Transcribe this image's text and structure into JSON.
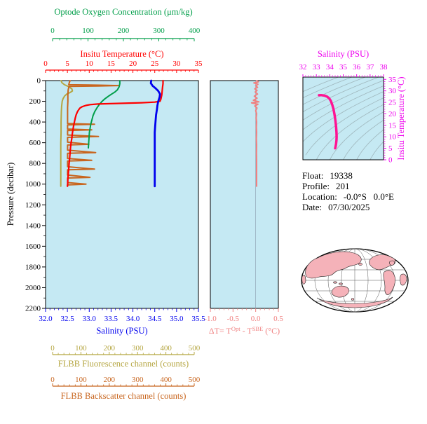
{
  "colors": {
    "plot_bg": "#C5E9F3",
    "frame": "#000000",
    "contour": "#9FB6BC",
    "map_land": "#F5B2B9",
    "map_line": "#333333",
    "text": "#000000"
  },
  "chart_data": [
    {
      "type": "line",
      "name": "profile-plot",
      "pressure_axis": {
        "title": "Pressure (decibar)",
        "color": "#000000",
        "range": [
          0,
          2200
        ],
        "ticks": [
          "0",
          "200",
          "400",
          "600",
          "800",
          "1000",
          "1200",
          "1400",
          "1600",
          "1800",
          "2000",
          "2200"
        ]
      },
      "salinity_axis": {
        "title": "Salinity (PSU)",
        "color": "#0000EE",
        "range": [
          32,
          35.5
        ],
        "ticks": [
          "32.0",
          "32.5",
          "33.0",
          "33.5",
          "34.0",
          "34.5",
          "35.0",
          "35.5"
        ]
      },
      "temperature_axis": {
        "title": "Insitu Temperature (°C)",
        "color": "#FF0000",
        "range": [
          0,
          35
        ],
        "ticks": [
          "0",
          "5",
          "10",
          "15",
          "20",
          "25",
          "30",
          "35"
        ]
      },
      "oxygen_axis": {
        "title": "Optode Oxygen Concentration (μm/kg)",
        "color": "#009E49",
        "range": [
          0,
          400
        ],
        "ticks": [
          "0",
          "100",
          "200",
          "300",
          "400"
        ]
      },
      "fluorescence_axis": {
        "title": "FLBB Fluorescence channel (counts)",
        "color": "#B5A642",
        "range": [
          0,
          500
        ],
        "ticks": [
          "0",
          "100",
          "200",
          "300",
          "400",
          "500"
        ]
      },
      "backscatter_axis": {
        "title": "FLBB Backscatter channel (counts)",
        "color": "#C8651E",
        "range": [
          0,
          500
        ],
        "ticks": [
          "0",
          "100",
          "200",
          "300",
          "400",
          "500"
        ]
      },
      "series": [
        {
          "name": "fluorescence",
          "axis": "fluorescence",
          "color": "#B5A642",
          "points": [
            [
              0,
              30
            ],
            [
              20,
              33
            ],
            [
              40,
              42
            ],
            [
              60,
              58
            ],
            [
              80,
              68
            ],
            [
              100,
              70
            ],
            [
              115,
              62
            ],
            [
              130,
              50
            ],
            [
              150,
              42
            ],
            [
              175,
              37
            ],
            [
              200,
              34
            ],
            [
              250,
              32
            ],
            [
              300,
              31
            ],
            [
              400,
              30
            ],
            [
              500,
              30
            ],
            [
              600,
              29
            ],
            [
              700,
              29
            ],
            [
              800,
              29
            ],
            [
              900,
              29
            ],
            [
              1000,
              29
            ],
            [
              1020,
              29
            ]
          ]
        },
        {
          "name": "backscatter",
          "axis": "backscatter",
          "color": "#C8651E",
          "points": [
            [
              0,
              62
            ],
            [
              20,
              59
            ],
            [
              40,
              57
            ],
            [
              44,
              165
            ],
            [
              48,
              232
            ],
            [
              52,
              160
            ],
            [
              56,
              58
            ],
            [
              90,
              55
            ],
            [
              140,
              54
            ],
            [
              200,
              54
            ],
            [
              260,
              53
            ],
            [
              320,
              53
            ],
            [
              380,
              53
            ],
            [
              415,
              53
            ],
            [
              422,
              148
            ],
            [
              428,
              53
            ],
            [
              468,
              53
            ],
            [
              476,
              138
            ],
            [
              482,
              53
            ],
            [
              525,
              53
            ],
            [
              540,
              162
            ],
            [
              548,
              53
            ],
            [
              595,
              53
            ],
            [
              615,
              128
            ],
            [
              622,
              53
            ],
            [
              672,
              53
            ],
            [
              695,
              152
            ],
            [
              702,
              53
            ],
            [
              752,
              53
            ],
            [
              770,
              138
            ],
            [
              777,
              53
            ],
            [
              832,
              53
            ],
            [
              855,
              148
            ],
            [
              862,
              53
            ],
            [
              912,
              53
            ],
            [
              935,
              132
            ],
            [
              941,
              53
            ],
            [
              985,
              53
            ],
            [
              1000,
              118
            ],
            [
              1008,
              53
            ],
            [
              1020,
              53
            ]
          ]
        },
        {
          "name": "oxygen",
          "axis": "oxygen",
          "color": "#009E49",
          "points": [
            [
              0,
              190
            ],
            [
              30,
              190
            ],
            [
              60,
              188
            ],
            [
              90,
              183
            ],
            [
              110,
              176
            ],
            [
              130,
              167
            ],
            [
              150,
              158
            ],
            [
              175,
              148
            ],
            [
              200,
              140
            ],
            [
              230,
              132
            ],
            [
              260,
              126
            ],
            [
              300,
              119
            ],
            [
              340,
              114
            ],
            [
              380,
              111
            ],
            [
              420,
              108
            ],
            [
              460,
              106
            ],
            [
              500,
              104
            ],
            [
              550,
              103
            ],
            [
              600,
              102
            ],
            [
              650,
              101
            ]
          ]
        },
        {
          "name": "temperature",
          "axis": "temperature",
          "color": "#FF0000",
          "points": [
            [
              0,
              26.9
            ],
            [
              30,
              26.9
            ],
            [
              60,
              26.8
            ],
            [
              100,
              26.7
            ],
            [
              140,
              26.6
            ],
            [
              180,
              26.4
            ],
            [
              200,
              26.2
            ],
            [
              208,
              25.0
            ],
            [
              214,
              22.0
            ],
            [
              220,
              17.0
            ],
            [
              226,
              12.0
            ],
            [
              232,
              10.2
            ],
            [
              240,
              9.2
            ],
            [
              252,
              8.4
            ],
            [
              265,
              7.9
            ],
            [
              280,
              7.6
            ],
            [
              300,
              7.3
            ],
            [
              330,
              7.0
            ],
            [
              360,
              6.8
            ],
            [
              400,
              6.6
            ],
            [
              440,
              6.4
            ],
            [
              480,
              6.25
            ],
            [
              520,
              6.1
            ],
            [
              560,
              6.0
            ],
            [
              600,
              5.85
            ],
            [
              650,
              5.7
            ],
            [
              700,
              5.6
            ],
            [
              750,
              5.5
            ],
            [
              800,
              5.4
            ],
            [
              850,
              5.3
            ],
            [
              900,
              5.2
            ],
            [
              950,
              5.1
            ],
            [
              1000,
              5.05
            ],
            [
              1020,
              5.0
            ]
          ]
        },
        {
          "name": "salinity",
          "axis": "salinity",
          "color": "#0000EE",
          "points": [
            [
              0,
              34.42
            ],
            [
              25,
              34.41
            ],
            [
              50,
              34.45
            ],
            [
              75,
              34.52
            ],
            [
              100,
              34.58
            ],
            [
              130,
              34.62
            ],
            [
              160,
              34.61
            ],
            [
              200,
              34.58
            ],
            [
              240,
              34.56
            ],
            [
              280,
              34.55
            ],
            [
              330,
              34.53
            ],
            [
              380,
              34.52
            ],
            [
              440,
              34.51
            ],
            [
              500,
              34.5
            ],
            [
              600,
              34.5
            ],
            [
              700,
              34.5
            ],
            [
              800,
              34.5
            ],
            [
              900,
              34.5
            ],
            [
              1000,
              34.5
            ],
            [
              1020,
              34.5
            ]
          ]
        }
      ]
    },
    {
      "type": "line",
      "name": "delta-t-plot",
      "x_axis": {
        "title_parts": {
          "pre": "ΔT= T",
          "sup1": "Opt",
          "mid": " - T",
          "sup2": "SBE",
          "post": " (°C)"
        },
        "color": "#F08080",
        "range": [
          -1.0,
          0.5
        ],
        "ticks": [
          "-1.0",
          "-0.5",
          "0.0",
          "0.5"
        ]
      },
      "series": [
        {
          "name": "delta-t",
          "color": "#F08080",
          "points": [
            [
              0,
              0.02
            ],
            [
              12,
              0.06
            ],
            [
              22,
              -0.04
            ],
            [
              35,
              0.05
            ],
            [
              50,
              0.0
            ],
            [
              65,
              0.04
            ],
            [
              80,
              -0.02
            ],
            [
              95,
              0.03
            ],
            [
              110,
              -0.01
            ],
            [
              130,
              0.04
            ],
            [
              150,
              -0.03
            ],
            [
              170,
              0.03
            ],
            [
              190,
              -0.05
            ],
            [
              205,
              0.07
            ],
            [
              215,
              -0.09
            ],
            [
              228,
              0.05
            ],
            [
              245,
              -0.02
            ],
            [
              265,
              0.03
            ],
            [
              290,
              0.0
            ],
            [
              320,
              0.02
            ],
            [
              360,
              0.01
            ],
            [
              400,
              0.02
            ],
            [
              450,
              0.015
            ],
            [
              500,
              0.02
            ],
            [
              560,
              0.015
            ],
            [
              620,
              0.02
            ],
            [
              700,
              0.018
            ],
            [
              780,
              0.02
            ],
            [
              860,
              0.02
            ],
            [
              940,
              0.02
            ],
            [
              1020,
              0.02
            ]
          ]
        }
      ]
    },
    {
      "type": "line",
      "name": "ts-diagram",
      "x_axis": {
        "title": "Salinity (PSU)",
        "color": "#EE00EE",
        "range": [
          32,
          38
        ],
        "ticks": [
          "32",
          "33",
          "34",
          "35",
          "36",
          "37",
          "38"
        ]
      },
      "y_axis": {
        "title": "Insitu Temperature (°C)",
        "color": "#EE00EE",
        "range": [
          0,
          36
        ],
        "ticks": [
          "0",
          "5",
          "10",
          "15",
          "20",
          "25",
          "30",
          "35"
        ]
      },
      "series": [
        {
          "name": "t-s-curve",
          "color": "#FF1493",
          "points": [
            [
              33.2,
              28.1
            ],
            [
              33.35,
              28.15
            ],
            [
              33.5,
              28.05
            ],
            [
              33.65,
              27.85
            ],
            [
              33.8,
              27.5
            ],
            [
              33.95,
              26.8
            ],
            [
              34.08,
              25.6
            ],
            [
              34.18,
              24.0
            ],
            [
              34.28,
              22.0
            ],
            [
              34.36,
              19.5
            ],
            [
              34.42,
              17.0
            ],
            [
              34.47,
              14.5
            ],
            [
              34.5,
              12.0
            ],
            [
              34.51,
              10.0
            ],
            [
              34.5,
              8.5
            ],
            [
              34.47,
              7.0
            ],
            [
              34.44,
              6.0
            ],
            [
              34.41,
              5.2
            ],
            [
              34.4,
              5.0
            ]
          ]
        }
      ]
    }
  ],
  "info": {
    "lines": [
      {
        "label": "Float:",
        "value": "19338"
      },
      {
        "label": "Profile:",
        "value": "201"
      },
      {
        "label": "Location:",
        "value": "-0.0°S   0.0°E"
      },
      {
        "label": "Date:",
        "value": "07/30/2025"
      }
    ]
  }
}
